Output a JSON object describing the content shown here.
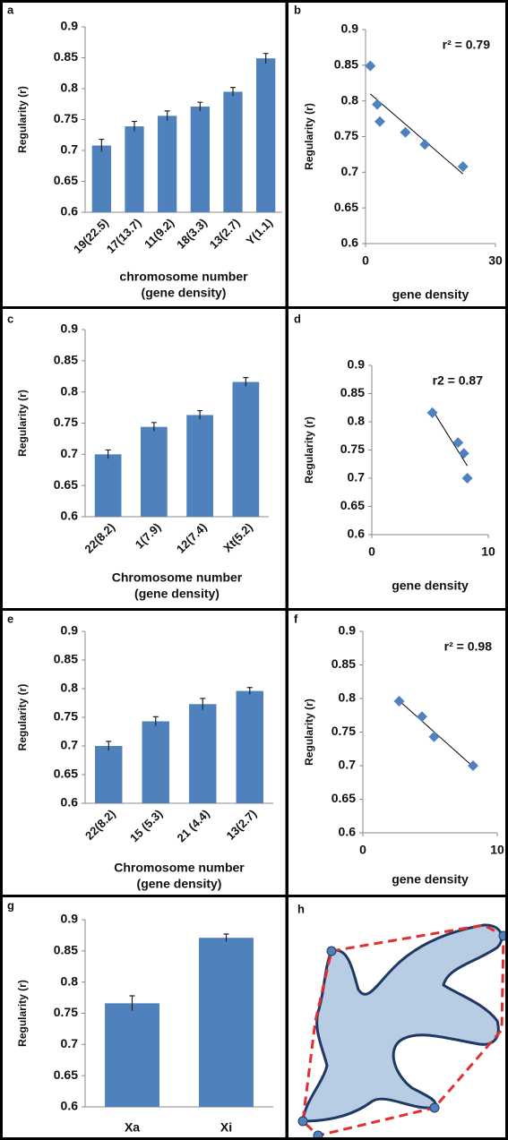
{
  "chart_data": [
    {
      "type": "bar",
      "label": "a",
      "y_label": "Regularity (r)",
      "x_label": [
        "chromosome number",
        "(gene density)"
      ],
      "categories": [
        "19(22.5)",
        "17(13.7)",
        "11(9.2)",
        "18(3.3)",
        "13(2.7)",
        "Y(1.1)"
      ],
      "values": [
        0.708,
        0.739,
        0.756,
        0.771,
        0.795,
        0.849
      ],
      "errors": [
        0.01,
        0.008,
        0.008,
        0.007,
        0.007,
        0.008
      ],
      "color": "#4f81bd",
      "ylim": [
        0.6,
        0.9
      ],
      "yticks": [
        0.6,
        0.65,
        0.7,
        0.75,
        0.8,
        0.85,
        0.9
      ]
    },
    {
      "type": "scatter",
      "label": "b",
      "y_label": "Regularity (r)",
      "x_label": [
        "gene density"
      ],
      "annotation": "r² = 0.79",
      "x": [
        1.1,
        2.7,
        3.3,
        9.2,
        13.7,
        22.5
      ],
      "values": [
        0.849,
        0.795,
        0.771,
        0.756,
        0.739,
        0.708
      ],
      "color": "#4f81bd",
      "trendline": true,
      "xlim": [
        0,
        30
      ],
      "xticks": [
        0,
        30
      ],
      "ylim": [
        0.6,
        0.9
      ],
      "yticks": [
        0.6,
        0.65,
        0.7,
        0.75,
        0.8,
        0.85,
        0.9
      ]
    },
    {
      "type": "bar",
      "label": "c",
      "y_label": "Regularity (r)",
      "x_label": [
        "Chromosome number",
        "(gene density)"
      ],
      "categories": [
        "22(8.2)",
        "1(7.9)",
        "12(7.4)",
        "Xt(5.2)"
      ],
      "values": [
        0.7,
        0.744,
        0.763,
        0.816
      ],
      "errors": [
        0.007,
        0.007,
        0.007,
        0.007
      ],
      "color": "#4f81bd",
      "ylim": [
        0.6,
        0.9
      ],
      "yticks": [
        0.6,
        0.65,
        0.7,
        0.75,
        0.8,
        0.85,
        0.9
      ]
    },
    {
      "type": "scatter",
      "label": "d",
      "y_label": "Regularity (r)",
      "x_label": [
        "gene density"
      ],
      "annotation": "r2 = 0.87",
      "x": [
        5.2,
        7.4,
        7.9,
        8.2
      ],
      "values": [
        0.816,
        0.763,
        0.744,
        0.7
      ],
      "color": "#4f81bd",
      "trendline": true,
      "xlim": [
        0,
        10
      ],
      "xticks": [
        0,
        10
      ],
      "ylim": [
        0.6,
        0.9
      ],
      "yticks": [
        0.6,
        0.65,
        0.7,
        0.75,
        0.8,
        0.85,
        0.9
      ]
    },
    {
      "type": "bar",
      "label": "e",
      "y_label": "Regularity (r)",
      "x_label": [
        "Chromosome number",
        "(gene density)"
      ],
      "categories": [
        "22(8.2)",
        "15 (5.3)",
        "21 (4.4)",
        "13(2.7)"
      ],
      "values": [
        0.7,
        0.743,
        0.773,
        0.796
      ],
      "errors": [
        0.008,
        0.008,
        0.01,
        0.006
      ],
      "color": "#4f81bd",
      "ylim": [
        0.6,
        0.9
      ],
      "yticks": [
        0.6,
        0.65,
        0.7,
        0.75,
        0.8,
        0.85,
        0.9
      ]
    },
    {
      "type": "scatter",
      "label": "f",
      "y_label": "Regularity (r)",
      "x_label": [
        "gene density"
      ],
      "annotation": "r² = 0.98",
      "x": [
        8.2,
        5.3,
        4.4,
        2.7
      ],
      "values": [
        0.7,
        0.743,
        0.773,
        0.796
      ],
      "color": "#4f81bd",
      "trendline": true,
      "xlim": [
        0,
        10
      ],
      "xticks": [
        0,
        10
      ],
      "ylim": [
        0.6,
        0.9
      ],
      "yticks": [
        0.6,
        0.65,
        0.7,
        0.75,
        0.8,
        0.85,
        0.9
      ]
    },
    {
      "type": "bar",
      "label": "g",
      "y_label": "Regularity (r)",
      "categories": [
        "Xa",
        "Xi"
      ],
      "values": [
        0.766,
        0.871
      ],
      "errors": [
        0.012,
        0.006
      ],
      "color": "#4f81bd",
      "ylim": [
        0.6,
        0.9
      ],
      "yticks": [
        0.6,
        0.65,
        0.7,
        0.75,
        0.8,
        0.85,
        0.9
      ]
    }
  ],
  "diagram": {
    "label": "h"
  }
}
